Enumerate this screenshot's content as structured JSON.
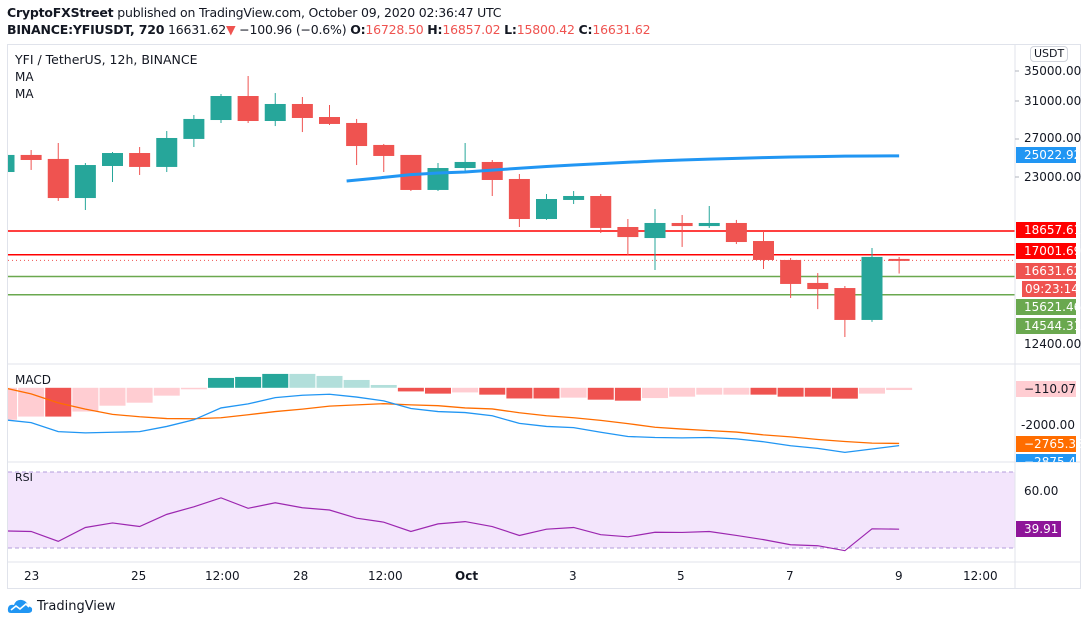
{
  "header": {
    "publisher": "CryptoFXStreet",
    "published_text": "published on TradingView.com, October 09, 2020 02:36:47 UTC",
    "symbol": "BINANCE:YFIUSDT, 720",
    "last": "16631.62",
    "change": "−100.96 (−0.6%)",
    "o_label": "O:",
    "o": "16728.50",
    "h_label": "H:",
    "h": "16857.02",
    "l_label": "L:",
    "l": "15800.42",
    "c_label": "C:",
    "c": "16631.62"
  },
  "legend": {
    "title": "YFI / TetherUS, 12h, BINANCE",
    "ma1": "MA",
    "ma2": "MA",
    "macd": "MACD",
    "rsi": "RSI"
  },
  "price_axis": {
    "currency": "USDT",
    "ticks": [
      "35000.00",
      "31000.00",
      "27000.00",
      "23000.00",
      "12400.00"
    ],
    "labels": {
      "ma": "25022.92",
      "resistance1": "18657.61",
      "resistance2": "17001.69",
      "last": "16631.62",
      "countdown": "09:23:14",
      "support1": "15621.46",
      "support2": "14544.31"
    },
    "macd_ticks": [
      "-2000.00"
    ],
    "macd_labels": {
      "hist": "−110.07",
      "signal": "−2765.33",
      "macd": "−2875.40"
    },
    "rsi_ticks": [
      "60.00"
    ],
    "rsi_label": "39.91"
  },
  "time_axis": [
    "23",
    "25",
    "12:00",
    "28",
    "12:00",
    "Oct",
    "3",
    "5",
    "7",
    "9",
    "12:00"
  ],
  "footer": {
    "brand": "TradingView"
  },
  "colors": {
    "up": "#26a69a",
    "down": "#ef5350",
    "ma": "#2196f3",
    "resistance": "#ff0000",
    "support": "#6aa84f",
    "macd": "#2196f3",
    "signal": "#ff6d00",
    "rsi": "#9c27b0",
    "rsi_bg": "#f3e5fc"
  },
  "chart_data": {
    "type": "candlestick",
    "scale": "log",
    "times": [
      "Sep 22 12:00",
      "Sep 23",
      "Sep 23 12:00",
      "Sep 24",
      "Sep 24 12:00",
      "Sep 25",
      "Sep 25 12:00",
      "Sep 26",
      "Sep 26 12:00",
      "Sep 27",
      "Sep 27 12:00",
      "Sep 28",
      "Sep 28 12:00",
      "Sep 29",
      "Sep 29 12:00",
      "Sep 30",
      "Sep 30 12:00",
      "Oct 1",
      "Oct 1 12:00",
      "Oct 2",
      "Oct 2 12:00",
      "Oct 3",
      "Oct 3 12:00",
      "Oct 4",
      "Oct 4 12:00",
      "Oct 5",
      "Oct 5 12:00",
      "Oct 6",
      "Oct 6 12:00",
      "Oct 7",
      "Oct 7 12:00",
      "Oct 8",
      "Oct 8 12:00",
      "Oct 9"
    ],
    "ohlc": [
      [
        23490,
        25110,
        23490,
        25110
      ],
      [
        25110,
        25600,
        23680,
        24620
      ],
      [
        24720,
        26310,
        20980,
        21220
      ],
      [
        21220,
        24330,
        20250,
        24140
      ],
      [
        24050,
        25400,
        22590,
        25300
      ],
      [
        25300,
        25900,
        23220,
        23960
      ],
      [
        23960,
        27570,
        23490,
        26830
      ],
      [
        26730,
        29350,
        25900,
        28900
      ],
      [
        28780,
        31860,
        28450,
        31610
      ],
      [
        31610,
        34180,
        28450,
        28670
      ],
      [
        28670,
        31980,
        28110,
        30640
      ],
      [
        30640,
        31490,
        27460,
        29010
      ],
      [
        29120,
        30520,
        28230,
        28340
      ],
      [
        28450,
        28900,
        24140,
        26000
      ],
      [
        26110,
        26210,
        23490,
        25010
      ],
      [
        25110,
        25110,
        21810,
        21900
      ],
      [
        21900,
        24330,
        21810,
        23860
      ],
      [
        23860,
        26310,
        23490,
        24430
      ],
      [
        24430,
        24620,
        21390,
        22770
      ],
      [
        22860,
        23310,
        18950,
        19550
      ],
      [
        19550,
        21560,
        19480,
        21140
      ],
      [
        21060,
        21810,
        20730,
        21390
      ],
      [
        21390,
        21560,
        18510,
        18880
      ],
      [
        18950,
        19550,
        16980,
        18220
      ],
      [
        18150,
        20330,
        16020,
        19250
      ],
      [
        19250,
        19860,
        17530,
        19020
      ],
      [
        19020,
        20570,
        18880,
        19250
      ],
      [
        19250,
        19480,
        17730,
        17870
      ],
      [
        17940,
        18660,
        16080,
        16660
      ],
      [
        16660,
        16790,
        14360,
        15170
      ],
      [
        15230,
        15830,
        13750,
        14870
      ],
      [
        14930,
        15050,
        12330,
        13180
      ],
      [
        13180,
        17460,
        13080,
        16860
      ],
      [
        16728.5,
        16857.02,
        15800.42,
        16631.62
      ]
    ],
    "ma": {
      "from_index": 13,
      "values": [
        22680,
        23000,
        23250,
        23400,
        23490,
        23660,
        23840,
        24000,
        24140,
        24270,
        24400,
        24520,
        24620,
        24700,
        24780,
        24850,
        24910,
        24950,
        24990,
        25010,
        25022.92
      ]
    },
    "horizontal_lines": [
      {
        "price": 18657.61,
        "color": "#ff0000"
      },
      {
        "price": 17001.69,
        "color": "#ff0000"
      },
      {
        "price": 15621.46,
        "color": "#6aa84f"
      },
      {
        "price": 14544.31,
        "color": "#6aa84f"
      }
    ],
    "macd": {
      "histogram": [
        -1590,
        -1430,
        -1430,
        -1180,
        -890,
        -740,
        -390,
        -50,
        490,
        540,
        690,
        690,
        590,
        390,
        140,
        -180,
        -290,
        -230,
        -340,
        -530,
        -530,
        -490,
        -590,
        -640,
        -510,
        -440,
        -340,
        -340,
        -340,
        -440,
        -440,
        -540,
        -290,
        -110.07
      ],
      "hist_dark": [
        false,
        false,
        true,
        false,
        false,
        false,
        false,
        false,
        true,
        true,
        true,
        false,
        false,
        false,
        false,
        true,
        true,
        false,
        true,
        true,
        true,
        false,
        true,
        true,
        false,
        false,
        false,
        false,
        true,
        true,
        true,
        true,
        false,
        false
      ],
      "macd": [
        -1590,
        -1730,
        -2180,
        -2240,
        -2210,
        -2180,
        -1920,
        -1590,
        -1000,
        -800,
        -490,
        -370,
        -320,
        -460,
        -650,
        -1030,
        -1180,
        -1230,
        -1390,
        -1770,
        -1920,
        -1980,
        -2210,
        -2420,
        -2470,
        -2490,
        -2470,
        -2540,
        -2680,
        -2880,
        -3010,
        -3210,
        -3040,
        -2875.4
      ],
      "signal": [
        0,
        -300,
        -750,
        -1060,
        -1320,
        -1440,
        -1530,
        -1540,
        -1490,
        -1340,
        -1180,
        -1060,
        -910,
        -850,
        -790,
        -850,
        -890,
        -1000,
        -1050,
        -1240,
        -1390,
        -1490,
        -1620,
        -1780,
        -1960,
        -2050,
        -2130,
        -2200,
        -2340,
        -2440,
        -2570,
        -2670,
        -2750,
        -2765.33
      ]
    },
    "rsi": {
      "values": [
        39.0,
        38.7,
        33.5,
        40.8,
        43.2,
        41.3,
        47.7,
        51.7,
        56.4,
        50.9,
        53.8,
        51.2,
        50.0,
        45.7,
        43.6,
        38.7,
        42.7,
        43.9,
        41.3,
        36.6,
        39.9,
        40.8,
        37.0,
        35.9,
        38.3,
        38.2,
        38.7,
        36.6,
        34.4,
        31.7,
        31.2,
        28.6,
        40.1,
        39.91
      ],
      "upper": 70,
      "lower": 30
    }
  }
}
